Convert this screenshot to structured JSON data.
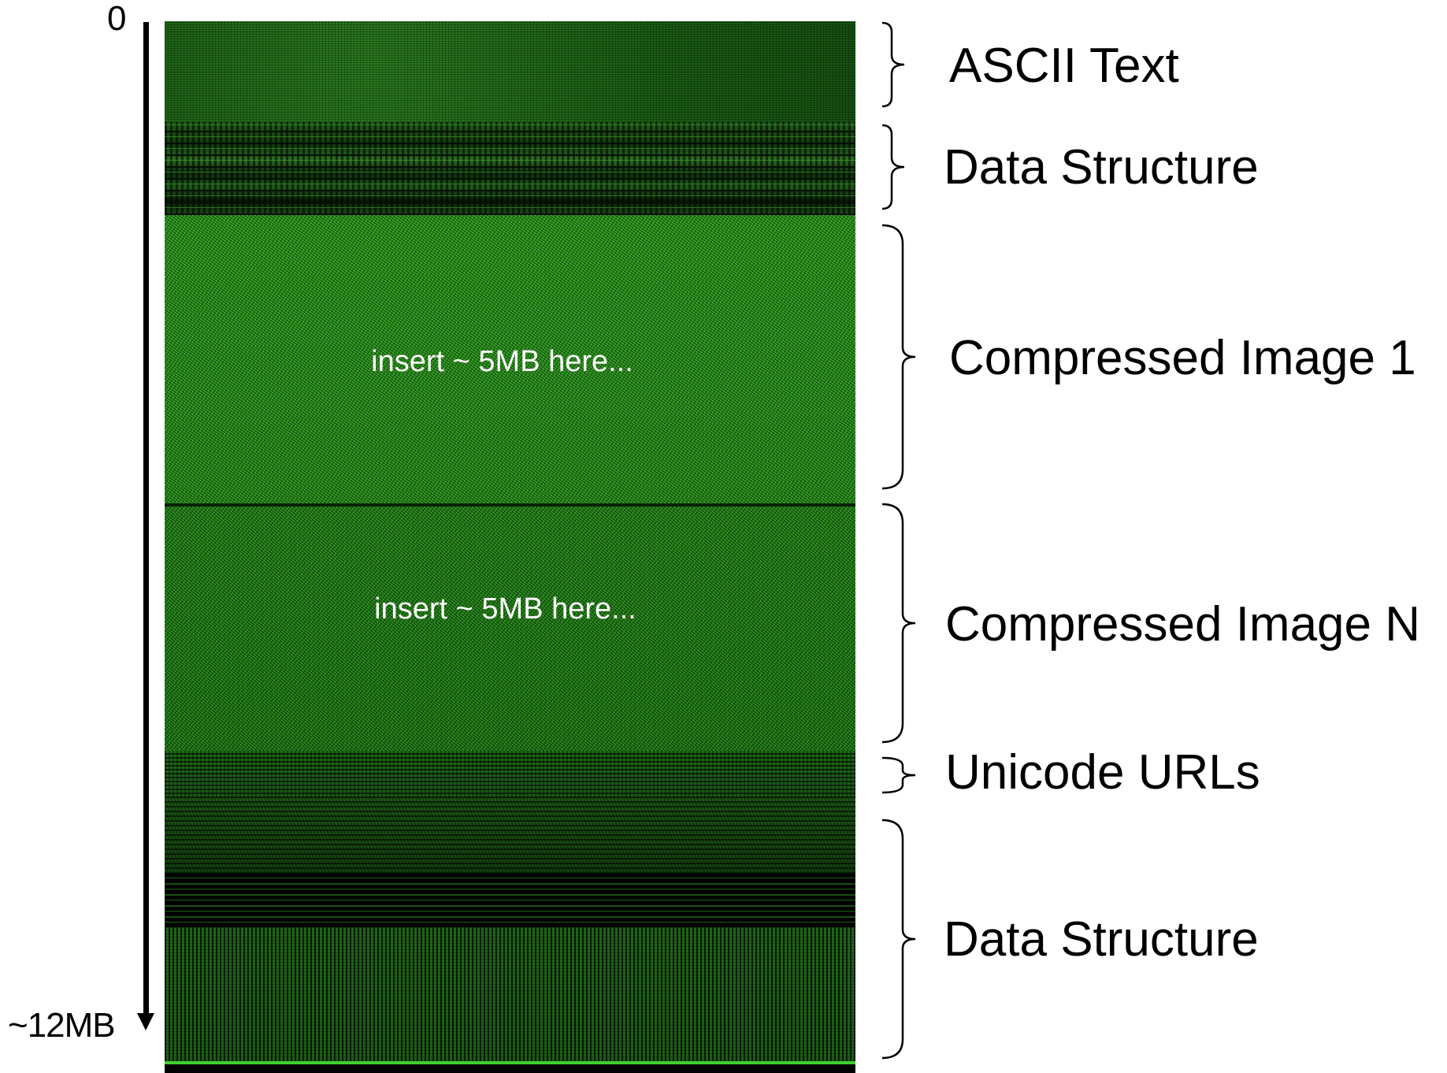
{
  "axis": {
    "start_label": "0",
    "end_label": "~12MB"
  },
  "visualization": {
    "insert_note_1": "insert ~ 5MB here...",
    "insert_note_2": "insert ~ 5MB here..."
  },
  "regions": [
    {
      "label": "ASCII Text"
    },
    {
      "label": "Data Structure"
    },
    {
      "label": "Compressed Image 1"
    },
    {
      "label": "Compressed Image N"
    },
    {
      "label": "Unicode URLs"
    },
    {
      "label": "Data Structure"
    }
  ],
  "colors": {
    "visualization_green": "#2e9a20",
    "highlight_green": "#3fcf2c",
    "background": "#ffffff",
    "ink": "#000000"
  }
}
